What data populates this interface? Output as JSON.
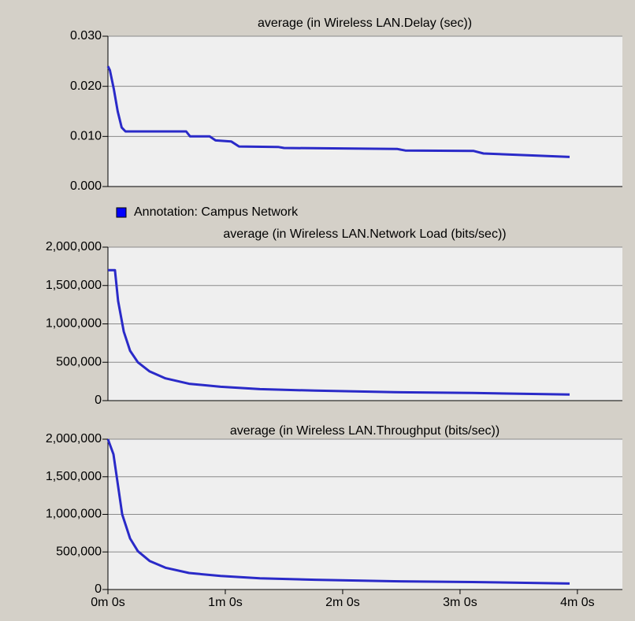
{
  "chart_data": [
    {
      "type": "line",
      "title": "average (in Wireless LAN.Delay (sec))",
      "xlim": [
        0,
        263
      ],
      "ylim": [
        0,
        0.03
      ],
      "yticks": [
        {
          "value": 0,
          "label": "0.000"
        },
        {
          "value": 0.01,
          "label": "0.010"
        },
        {
          "value": 0.02,
          "label": "0.020"
        },
        {
          "value": 0.03,
          "label": "0.030"
        }
      ],
      "grid": true,
      "legend": "bottom",
      "series": [
        {
          "name": "Annotation: Campus Network",
          "color": "#2a2ac8",
          "x": [
            0,
            1,
            3,
            5,
            7,
            9,
            40,
            42,
            52,
            55,
            63,
            67,
            87,
            90,
            148,
            152,
            187,
            192,
            236
          ],
          "values": [
            0.024,
            0.0232,
            0.0195,
            0.015,
            0.0118,
            0.011,
            0.011,
            0.01,
            0.01,
            0.0092,
            0.009,
            0.008,
            0.0079,
            0.0077,
            0.0075,
            0.0072,
            0.0071,
            0.0066,
            0.0059
          ]
        }
      ]
    },
    {
      "type": "line",
      "title": "average (in Wireless LAN.Network Load (bits/sec))",
      "xlim": [
        0,
        263
      ],
      "ylim": [
        0,
        2000000
      ],
      "yticks": [
        0,
        {
          "value": 500000,
          "label": "500,000"
        },
        {
          "value": 1000000,
          "label": "1,000,000"
        },
        {
          "value": 1500000,
          "label": "1,500,000"
        },
        {
          "value": 2000000,
          "label": "2,000,000"
        }
      ],
      "grid": true,
      "series": [
        {
          "color": "#2a2ac8",
          "x": [
            0,
            3.6,
            5.2,
            8.1,
            11.3,
            15.3,
            21.3,
            29.4,
            41.5,
            57.6,
            77.7,
            105.9,
            146.2,
            186.4,
            236
          ],
          "values": [
            1700000,
            1700000,
            1300000,
            900000,
            650000,
            500000,
            380000,
            290000,
            220000,
            180000,
            150000,
            130000,
            110000,
            100000,
            80000
          ]
        }
      ]
    },
    {
      "type": "line",
      "title": "average (in Wireless LAN.Throughput (bits/sec))",
      "xlim": [
        0,
        263
      ],
      "ylim": [
        0,
        2000000
      ],
      "xticks": [
        {
          "value": 0,
          "label": "0m 0s"
        },
        {
          "value": 60,
          "label": "1m 0s"
        },
        {
          "value": 120,
          "label": "2m 0s"
        },
        {
          "value": 180,
          "label": "3m 0s"
        },
        {
          "value": 240,
          "label": "4m 0s"
        }
      ],
      "yticks": [
        0,
        {
          "value": 500000,
          "label": "500,000"
        },
        {
          "value": 1000000,
          "label": "1,000,000"
        },
        {
          "value": 1500000,
          "label": "1,500,000"
        },
        {
          "value": 2000000,
          "label": "2,000,000"
        }
      ],
      "grid": true,
      "series": [
        {
          "color": "#2a2ac8",
          "x": [
            0,
            2.8,
            7.3,
            11.3,
            15.3,
            21.3,
            29.4,
            41.5,
            57.6,
            77.7,
            105.9,
            146.2,
            186.4,
            236
          ],
          "values": [
            2000000,
            1800000,
            1000000,
            680000,
            510000,
            380000,
            290000,
            220000,
            180000,
            150000,
            130000,
            110000,
            100000,
            80000
          ]
        }
      ]
    }
  ]
}
